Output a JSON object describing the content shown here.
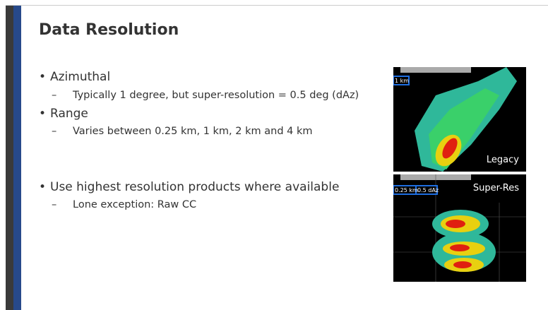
{
  "slide": {
    "title": "Data Resolution",
    "bullets": [
      {
        "text": "Azimuthal",
        "sub": [
          "Typically 1 degree, but super-resolution = 0.5 deg (dAz)"
        ]
      },
      {
        "text": "Range",
        "sub": [
          "Varies between 0.25 km, 1 km, 2 km and 4 km"
        ]
      },
      {
        "text": "Use highest resolution products where available",
        "sub": [
          "Lone exception: Raw CC"
        ]
      }
    ],
    "images": [
      {
        "caption": "Legacy",
        "tags": [
          "1 km"
        ]
      },
      {
        "caption": "Super-Res",
        "tags": [
          "0.25 km",
          "0.5 dAz"
        ]
      }
    ]
  }
}
